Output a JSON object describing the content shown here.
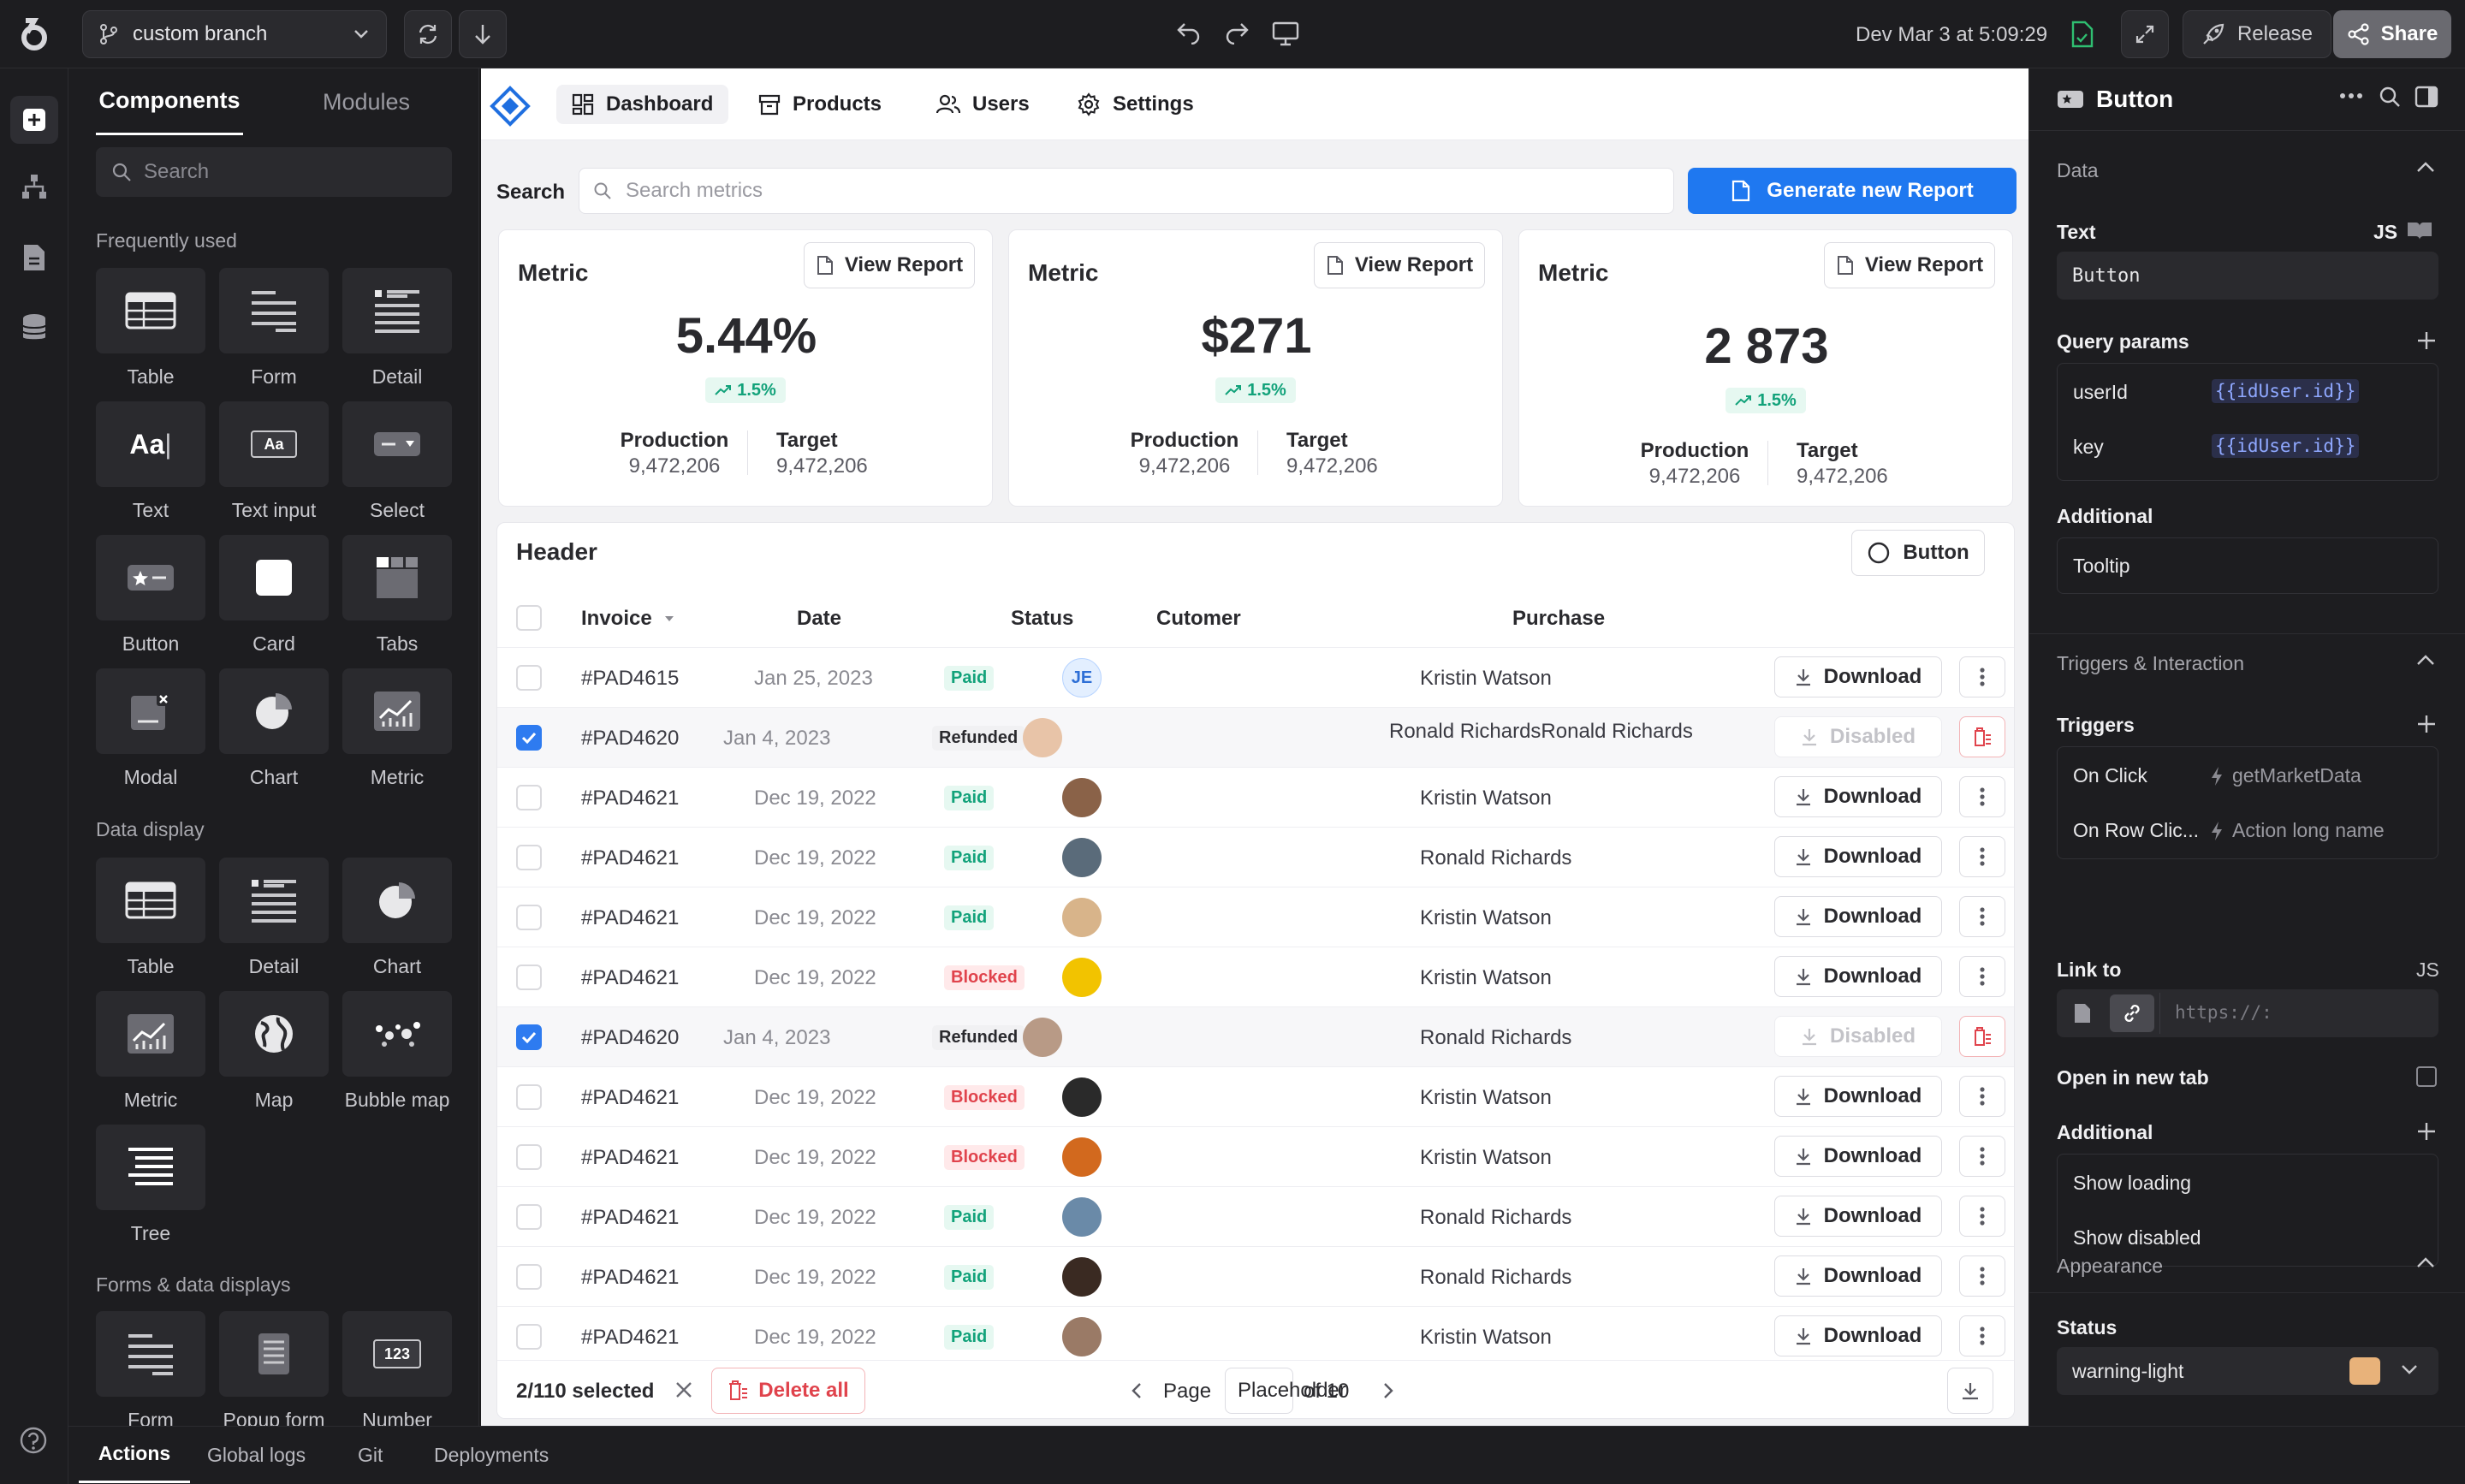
{
  "topbar": {
    "branch": "custom branch",
    "env_time": "Dev Mar 3 at 5:09:29",
    "release_label": "Release",
    "share_label": "Share"
  },
  "left_panel": {
    "tabs": [
      "Components",
      "Modules"
    ],
    "search_placeholder": "Search",
    "sections": [
      {
        "title": "Frequently used",
        "items": [
          "Table",
          "Form",
          "Detail",
          "Text",
          "Text input",
          "Select",
          "Button",
          "Card",
          "Tabs",
          "Modal",
          "Chart",
          "Metric"
        ]
      },
      {
        "title": "Data display",
        "items": [
          "Table",
          "Detail",
          "Chart",
          "Metric",
          "Map",
          "Bubble map",
          "Tree"
        ]
      },
      {
        "title": "Forms & data displays",
        "items": [
          "Form",
          "Popup form",
          "Number"
        ]
      }
    ]
  },
  "app": {
    "nav": [
      "Dashboard",
      "Products",
      "Users",
      "Settings"
    ],
    "search_label": "Search",
    "search_placeholder": "Search metrics",
    "generate_label": "Generate new Report",
    "metrics": [
      {
        "title": "Metric",
        "view": "View Report",
        "value": "5.44%",
        "trend": "1.5%",
        "prod_label": "Production",
        "prod_value": "9,472,206",
        "target_label": "Target",
        "target_value": "9,472,206"
      },
      {
        "title": "Metric",
        "view": "View Report",
        "value": "$271",
        "trend": "1.5%",
        "prod_label": "Production",
        "prod_value": "9,472,206",
        "target_label": "Target",
        "target_value": "9,472,206"
      },
      {
        "title": "Metric",
        "view": "View Report",
        "value": "2 873",
        "trend": "1.5%",
        "prod_label": "Production",
        "prod_value": "9,472,206",
        "target_label": "Target",
        "target_value": "9,472,206"
      }
    ],
    "table": {
      "header": "Header",
      "button_label": "Button",
      "columns": [
        "Invoice",
        "Date",
        "Status",
        "Cutomer",
        "Purchase"
      ],
      "rows": [
        {
          "invoice": "#PAD4615",
          "date": "Jan 25, 2023",
          "status": "Paid",
          "purchase": "Kristin Watson",
          "action": "Download",
          "checked": false,
          "avatar": "JE"
        },
        {
          "invoice": "#PAD4620",
          "date": "Jan 4, 2023",
          "status": "Refunded",
          "purchase": "Ronald RichardsRonald Richards",
          "action": "Disabled",
          "checked": true,
          "avatar": ""
        },
        {
          "invoice": "#PAD4621",
          "date": "Dec 19, 2022",
          "status": "Paid",
          "purchase": "Kristin Watson",
          "action": "Download",
          "checked": false,
          "avatar": ""
        },
        {
          "invoice": "#PAD4621",
          "date": "Dec 19, 2022",
          "status": "Paid",
          "purchase": "Ronald Richards",
          "action": "Download",
          "checked": false,
          "avatar": ""
        },
        {
          "invoice": "#PAD4621",
          "date": "Dec 19, 2022",
          "status": "Paid",
          "purchase": "Kristin Watson",
          "action": "Download",
          "checked": false,
          "avatar": ""
        },
        {
          "invoice": "#PAD4621",
          "date": "Dec 19, 2022",
          "status": "Blocked",
          "purchase": "Kristin Watson",
          "action": "Download",
          "checked": false,
          "avatar": ""
        },
        {
          "invoice": "#PAD4620",
          "date": "Jan 4, 2023",
          "status": "Refunded",
          "purchase": "Ronald Richards",
          "action": "Disabled",
          "checked": true,
          "avatar": ""
        },
        {
          "invoice": "#PAD4621",
          "date": "Dec 19, 2022",
          "status": "Blocked",
          "purchase": "Kristin Watson",
          "action": "Download",
          "checked": false,
          "avatar": ""
        },
        {
          "invoice": "#PAD4621",
          "date": "Dec 19, 2022",
          "status": "Blocked",
          "purchase": "Kristin Watson",
          "action": "Download",
          "checked": false,
          "avatar": ""
        },
        {
          "invoice": "#PAD4621",
          "date": "Dec 19, 2022",
          "status": "Paid",
          "purchase": "Ronald Richards",
          "action": "Download",
          "checked": false,
          "avatar": ""
        },
        {
          "invoice": "#PAD4621",
          "date": "Dec 19, 2022",
          "status": "Paid",
          "purchase": "Ronald Richards",
          "action": "Download",
          "checked": false,
          "avatar": ""
        },
        {
          "invoice": "#PAD4621",
          "date": "Dec 19, 2022",
          "status": "Paid",
          "purchase": "Kristin Watson",
          "action": "Download",
          "checked": false,
          "avatar": ""
        }
      ],
      "selected": "2/110 selected",
      "delete_all": "Delete all",
      "page_label": "Page",
      "page_placeholder": "Placeholder",
      "page_of": "of 10"
    }
  },
  "right_panel": {
    "title": "Button",
    "data_section": "Data",
    "text_label": "Text",
    "js_label": "JS",
    "text_value": "Button",
    "query_params_label": "Query params",
    "params": [
      {
        "key": "userId",
        "value": "{{idUser.id}}"
      },
      {
        "key": "key",
        "value": "{{idUser.id}}"
      }
    ],
    "additional_label": "Additional",
    "tooltip_value": "Tooltip",
    "triggers_section": "Triggers & Interaction",
    "triggers_label": "Triggers",
    "triggers": [
      {
        "event": "On Click",
        "action": "getMarketData"
      },
      {
        "event": "On Row Clic...",
        "action": "Action long name"
      }
    ],
    "link_label": "Link to",
    "link_js": "JS",
    "link_placeholder": "https://:",
    "new_tab_label": "Open in new tab",
    "additional2_label": "Additional",
    "additional_items": [
      "Show loading",
      "Show disabled"
    ],
    "appearance_section": "Appearance",
    "status_label": "Status",
    "status_value": "warning-light",
    "status_color": "#e8b27a"
  },
  "bottom_tabs": [
    "Actions",
    "Global logs",
    "Git",
    "Deployments"
  ]
}
